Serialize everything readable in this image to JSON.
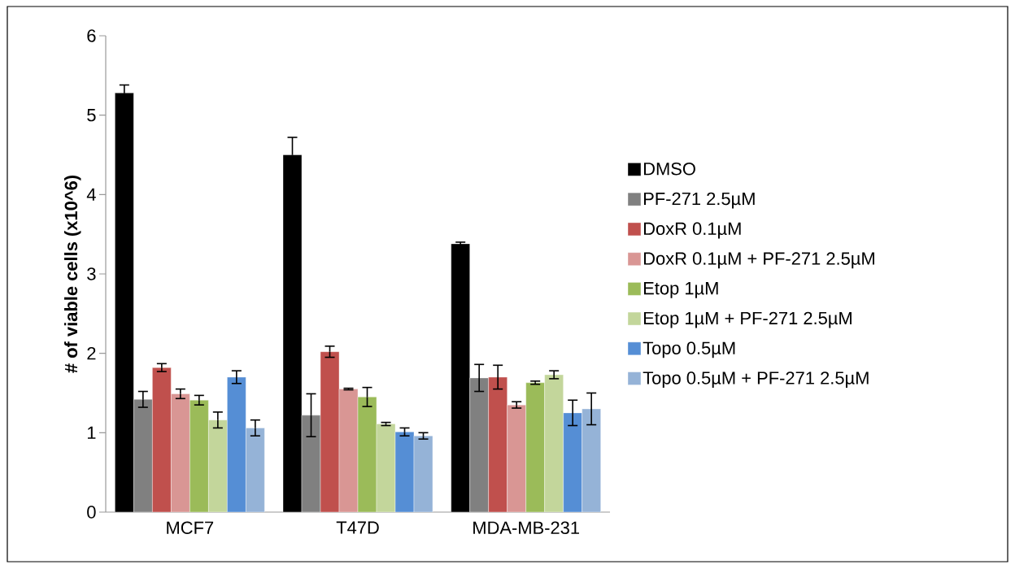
{
  "chart_data": {
    "type": "bar",
    "ylabel": "# of viable cells (x10^6)",
    "categories": [
      "MCF7",
      "T47D",
      "MDA-MB-231"
    ],
    "ylim": [
      0,
      6
    ],
    "yticks": [
      0,
      1,
      2,
      3,
      4,
      5,
      6
    ],
    "grid": false,
    "legend": "right",
    "series": [
      {
        "name": "DMSO",
        "color": "#000000",
        "values": [
          5.28,
          4.5,
          3.38
        ],
        "errors": [
          0.1,
          0.22,
          0.02
        ]
      },
      {
        "name": "PF-271 2.5µM",
        "color": "#808080",
        "values": [
          1.42,
          1.22,
          1.69
        ],
        "errors": [
          0.1,
          0.27,
          0.17
        ]
      },
      {
        "name": "DoxR 0.1µM",
        "color": "#c0504d",
        "values": [
          1.82,
          2.02,
          1.7
        ],
        "errors": [
          0.05,
          0.07,
          0.15
        ]
      },
      {
        "name": "DoxR 0.1µM + PF-271 2.5µM",
        "color": "#d99694",
        "values": [
          1.49,
          1.55,
          1.35
        ],
        "errors": [
          0.06,
          0.01,
          0.04
        ]
      },
      {
        "name": "Etop 1µM",
        "color": "#9bbb59",
        "values": [
          1.41,
          1.45,
          1.63
        ],
        "errors": [
          0.06,
          0.12,
          0.02
        ]
      },
      {
        "name": "Etop 1µM + PF-271 2.5µM",
        "color": "#c3d69b",
        "values": [
          1.16,
          1.11,
          1.73
        ],
        "errors": [
          0.1,
          0.02,
          0.05
        ]
      },
      {
        "name": "Topo 0.5µM",
        "color": "#558ed5",
        "values": [
          1.7,
          1.01,
          1.25
        ],
        "errors": [
          0.08,
          0.05,
          0.16
        ]
      },
      {
        "name": "Topo 0.5µM + PF-271 2.5µM",
        "color": "#95b3d7",
        "values": [
          1.06,
          0.96,
          1.3
        ],
        "errors": [
          0.1,
          0.04,
          0.2
        ]
      }
    ]
  }
}
